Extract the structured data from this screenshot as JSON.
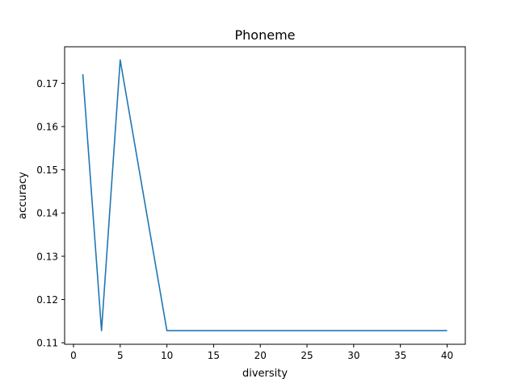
{
  "chart_data": {
    "type": "line",
    "title": "Phoneme",
    "xlabel": "diversity",
    "ylabel": "accuracy",
    "xlim": [
      -0.95,
      41.95
    ],
    "ylim": [
      0.10965,
      0.17845
    ],
    "x_ticks": [
      0,
      5,
      10,
      15,
      20,
      25,
      30,
      35,
      40
    ],
    "y_ticks": [
      0.11,
      0.12,
      0.13,
      0.14,
      0.15,
      0.16,
      0.17
    ],
    "x_tick_labels": [
      "0",
      "5",
      "10",
      "15",
      "20",
      "25",
      "30",
      "35",
      "40"
    ],
    "y_tick_labels": [
      "0.11",
      "0.12",
      "0.13",
      "0.14",
      "0.15",
      "0.16",
      "0.17"
    ],
    "grid": false,
    "series": [
      {
        "name": "accuracy",
        "color": "#1f77b4",
        "x": [
          1,
          3,
          5,
          10,
          20,
          30,
          40
        ],
        "y": [
          0.1721,
          0.1128,
          0.1754,
          0.1128,
          0.1128,
          0.1128,
          0.1128
        ]
      }
    ]
  }
}
